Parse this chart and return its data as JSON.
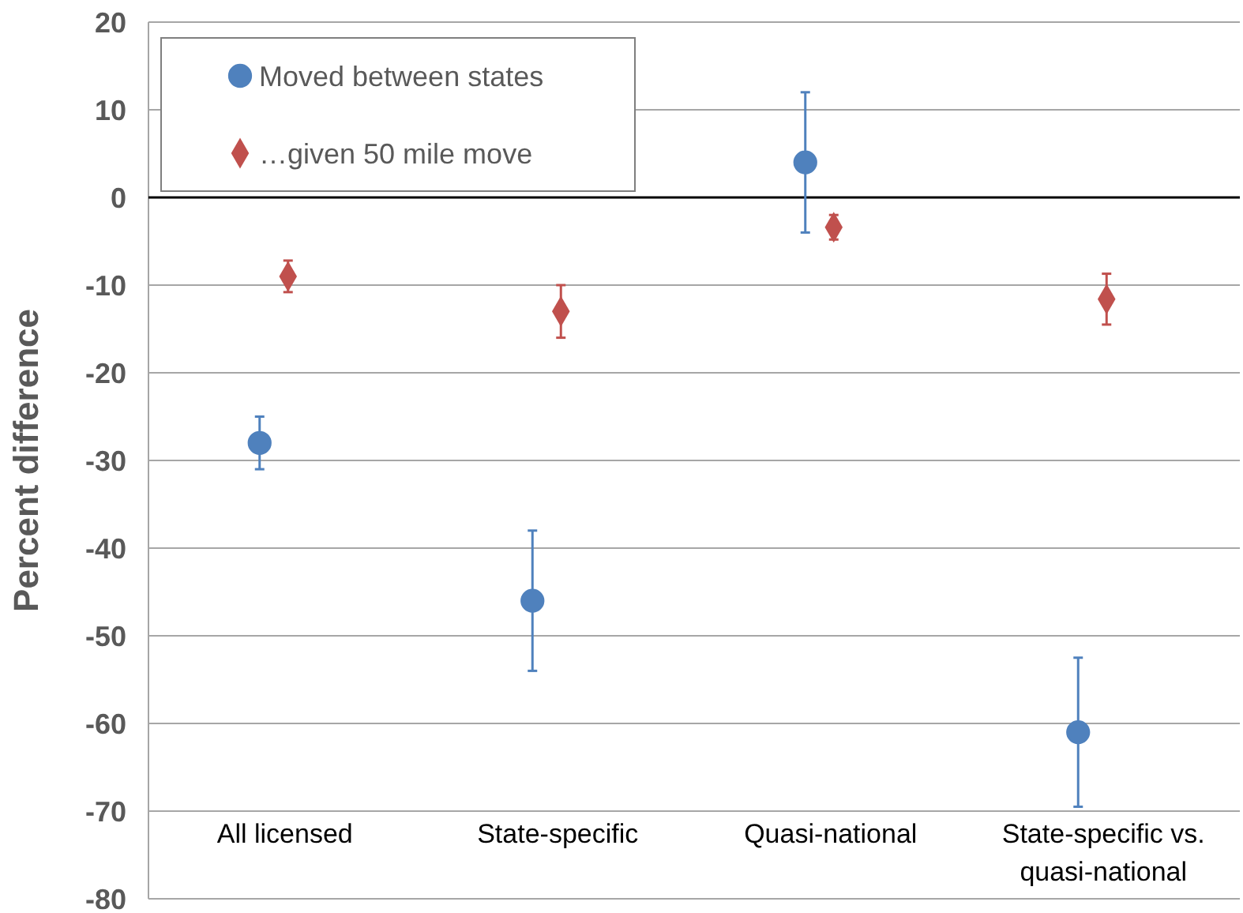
{
  "chart_data": {
    "type": "scatter",
    "ylabel": "Percent difference",
    "categories": [
      "All licensed",
      "State-specific",
      "Quasi-national",
      "State-specific vs. quasi-national"
    ],
    "series": [
      {
        "name": "Moved between states",
        "color": "#4f81bd",
        "marker": "circle",
        "values": [
          -28,
          -46,
          4,
          -61
        ],
        "errors": [
          3,
          8,
          8,
          8.5
        ]
      },
      {
        "name": "…given 50 mile move",
        "color": "#c0504d",
        "marker": "diamond",
        "values": [
          -9,
          -13,
          -3.4,
          -11.6
        ],
        "errors": [
          1.8,
          3,
          1.4,
          2.9
        ]
      }
    ],
    "ylim": [
      -80,
      20
    ],
    "yticks": [
      -80,
      -70,
      -60,
      -50,
      -40,
      -30,
      -20,
      -10,
      0,
      10,
      20
    ],
    "grid": "y",
    "legend": "top left",
    "ref_lines": [
      {
        "axis": "y",
        "value": 0,
        "color": "#000000"
      }
    ]
  }
}
